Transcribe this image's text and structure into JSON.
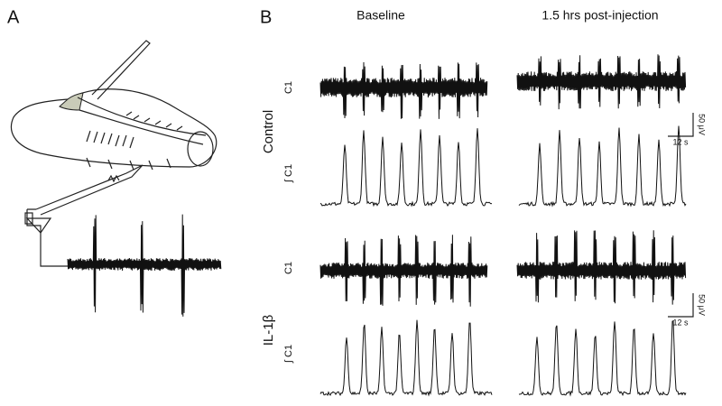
{
  "panel_a": {
    "label": "A"
  },
  "panel_b": {
    "label": "B",
    "columns": [
      "Baseline",
      "1.5 hrs post-injection"
    ],
    "rows": [
      {
        "condition": "Control",
        "traces": [
          "C1",
          "∫ C1"
        ],
        "scale_bar": {
          "amplitude": "50 μV",
          "time": "12 s"
        }
      },
      {
        "condition": "IL-1β",
        "traces": [
          "C1",
          "∫ C1"
        ],
        "scale_bar": {
          "amplitude": "50 μV",
          "time": "12 s"
        }
      }
    ]
  }
}
